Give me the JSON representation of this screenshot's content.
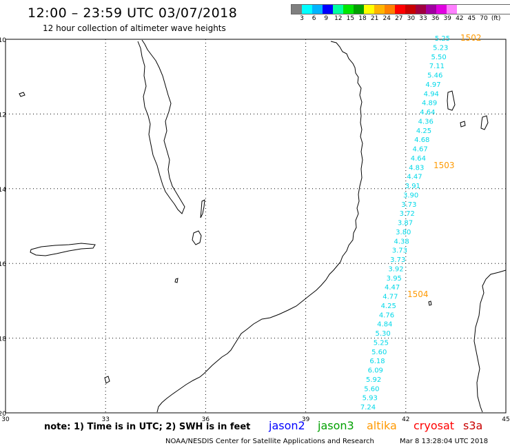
{
  "header": {
    "title": "12:00 – 23:59 UTC 03/07/2018",
    "subtitle": "12 hour collection of altimeter wave heights"
  },
  "color_scale": {
    "colors": [
      "#7f7f7f",
      "#00ffff",
      "#00b4ff",
      "#0000ff",
      "#00ffa0",
      "#00e600",
      "#00a000",
      "#ffff00",
      "#ffb400",
      "#ff8000",
      "#ff0000",
      "#c80000",
      "#a00040",
      "#a000a0",
      "#e000e0",
      "#ff80ff",
      "#ffffff"
    ],
    "labels": [
      "3",
      "6",
      "9",
      "12",
      "15",
      "18",
      "21",
      "24",
      "27",
      "30",
      "33",
      "36",
      "39",
      "42",
      "45",
      "70",
      "(ft)"
    ]
  },
  "map": {
    "lat_labels": [
      "-10",
      "-12",
      "-14",
      "-16",
      "-18",
      "-20"
    ],
    "lon_labels": [
      "30",
      "33",
      "36",
      "39",
      "42",
      "45"
    ],
    "wave_heights": [
      "5.25",
      "5.23",
      "5.50",
      "7.11",
      "5.46",
      "4.97",
      "4.94",
      "4.89",
      "4.64",
      "4.36",
      "4.25",
      "4.68",
      "4.67",
      "4.64",
      "4.83",
      "4.47",
      "3.91",
      "3.90",
      "3.73",
      "3.72",
      "3.87",
      "3.80",
      "4.38",
      "3.73",
      "3.73",
      "3.92",
      "3.95",
      "4.47",
      "4.77",
      "4.25",
      "4.76",
      "4.84",
      "5.30",
      "5.25",
      "5.60",
      "6.18",
      "6.09",
      "5.92",
      "5.60",
      "5.93",
      "7.24"
    ],
    "times": [
      {
        "label": "1502"
      },
      {
        "label": "1503"
      },
      {
        "label": "1504"
      }
    ],
    "wave_color": "#00d8e8",
    "time_color": "#ff9900"
  },
  "footer": {
    "note": "note:  1) Time is in UTC;  2) SWH is in feet",
    "satellites": [
      {
        "name": "jason2",
        "color": "#0000ff"
      },
      {
        "name": "jason3",
        "color": "#00a000"
      },
      {
        "name": "altika",
        "color": "#ff9900"
      },
      {
        "name": "cryosat",
        "color": "#ff0000"
      },
      {
        "name": "s3a",
        "color": "#c80000"
      }
    ],
    "credit": "NOAA/NESDIS Center for Satellite Applications and Research",
    "date": "Mar  8 13:28:04 UTC 2018"
  }
}
